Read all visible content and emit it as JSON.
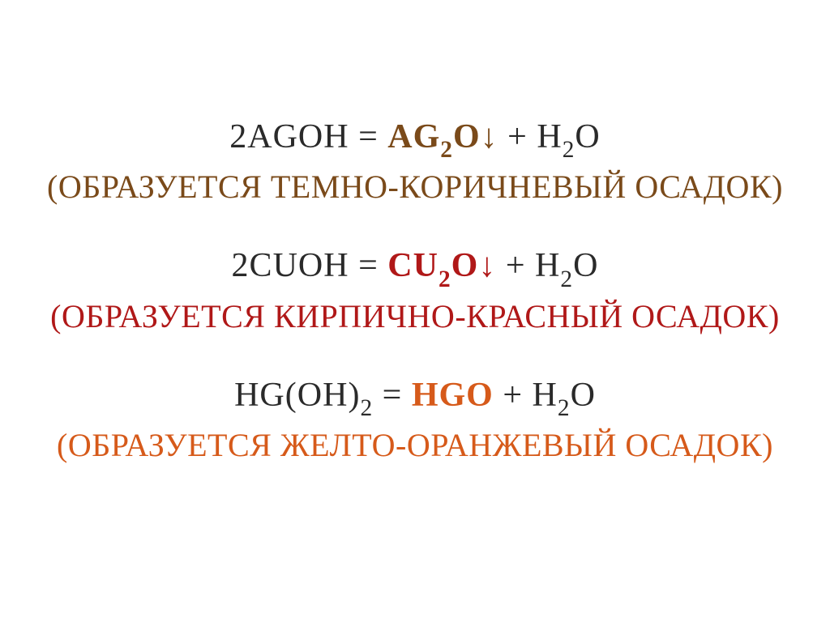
{
  "reactions": {
    "r1": {
      "eq_color": "#2a2a2a",
      "product_color": "#7a4a1a",
      "desc_color": "#7a4a1a",
      "reactant_coef": "2",
      "reactant_sym1": "A",
      "reactant_sym2": "G",
      "reactant_sym3": "O",
      "reactant_sym4": "H",
      "equals": " = ",
      "product_sym1": "A",
      "product_sym2": "G",
      "product_sub": "2",
      "product_sym3": "O",
      "arrow": "↓",
      "plus": " + ",
      "tail_sym1": "H",
      "tail_sub": "2",
      "tail_sym2": "O",
      "desc_open": "(",
      "desc_text": "ОБРАЗУЕТСЯ ТЕМНО-КОРИЧНЕВЫЙ ОСАДОК",
      "desc_close": ")"
    },
    "r2": {
      "eq_color": "#2a2a2a",
      "product_color": "#b01818",
      "desc_color": "#b01818",
      "reactant_coef": "2",
      "reactant_sym1": "C",
      "reactant_sym2": "U",
      "reactant_sym3": "O",
      "reactant_sym4": "H",
      "equals": " = ",
      "product_sym1": "C",
      "product_sym2": "U",
      "product_sub": "2",
      "product_sym3": "O",
      "arrow": "↓",
      "plus": " + ",
      "tail_sym1": "H",
      "tail_sub": "2",
      "tail_sym2": "O",
      "desc_open": "(",
      "desc_text": "ОБРАЗУЕТСЯ КИРПИЧНО-КРАСНЫЙ ОСАДОК",
      "desc_close": ")"
    },
    "r3": {
      "eq_color": "#2a2a2a",
      "product_color": "#d65a1a",
      "desc_color": "#d65a1a",
      "reactant_sym1": "H",
      "reactant_sym2": "G",
      "reactant_paren_open": "(",
      "reactant_sym3": "O",
      "reactant_sym4": "H",
      "reactant_paren_close": ")",
      "reactant_sub": "2",
      "equals": " = ",
      "product_sym1": "H",
      "product_sym2": "G",
      "product_sym3": "O",
      "plus": " + ",
      "tail_sym1": "H",
      "tail_sub": "2",
      "tail_sym2": "O",
      "desc_open": "(",
      "desc_text": "ОБРАЗУЕТСЯ ЖЕЛТО-ОРАНЖЕВЫЙ ОСАДОК",
      "desc_close": ")"
    }
  },
  "font_sizes": {
    "equation_pt": 42,
    "description_pt": 40
  },
  "background_color": "#ffffff"
}
